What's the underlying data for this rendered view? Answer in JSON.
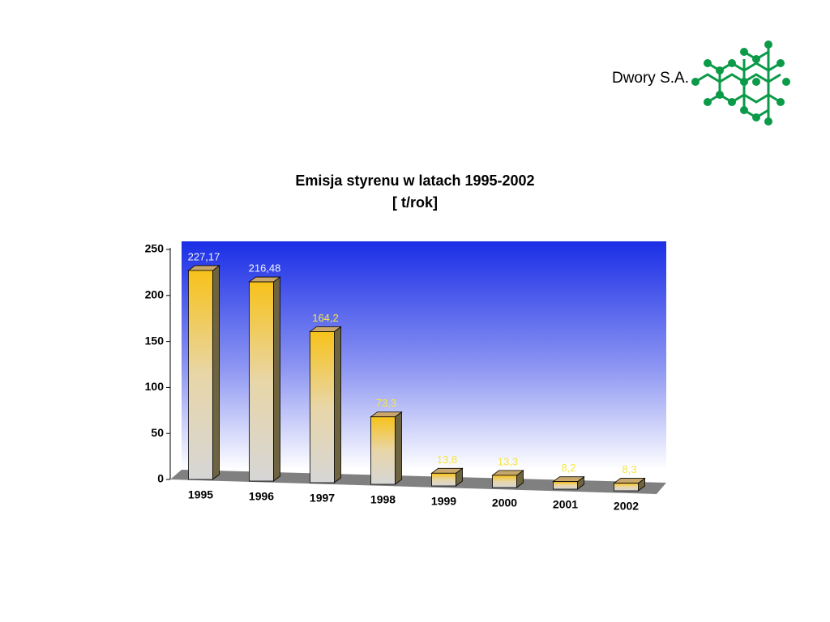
{
  "header": {
    "company": "Dwory S.A."
  },
  "chart_data": {
    "type": "bar3d",
    "title": "Emisja styrenu w latach 1995-2002",
    "subtitle": "[ t/rok]",
    "categories": [
      "1995",
      "1996",
      "1997",
      "1998",
      "1999",
      "2000",
      "2001",
      "2002"
    ],
    "values": [
      227.17,
      216.48,
      164.2,
      73.3,
      13.8,
      13.3,
      8.2,
      8.3
    ],
    "value_labels": [
      "227,17",
      "216,48",
      "164,2",
      "73,3",
      "13,8",
      "13,3",
      "8,2",
      "8,3"
    ],
    "color": "#f5c21b",
    "ylim": [
      0,
      250
    ],
    "yticks": [
      0,
      50,
      100,
      150,
      200,
      250
    ]
  }
}
